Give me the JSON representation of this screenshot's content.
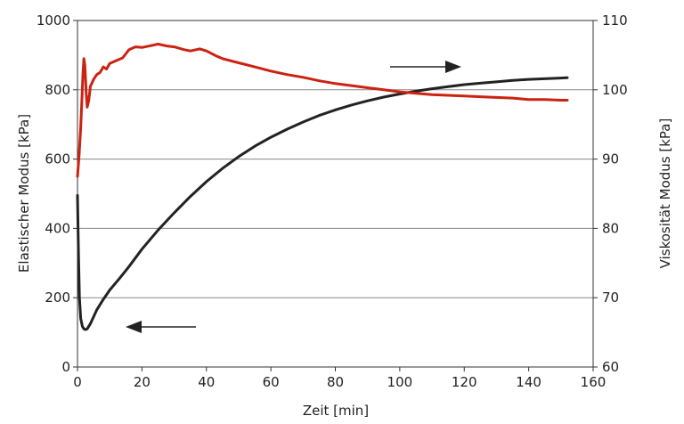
{
  "chart_data": {
    "type": "line",
    "xlabel": "Zeit [min]",
    "ylabel_left": "Elastischer Modus [kPa]",
    "ylabel_right": "Viskosität Modus [kPa]",
    "xlim": [
      0,
      160
    ],
    "ylim_left": [
      0,
      1000
    ],
    "ylim_right": [
      60,
      110
    ],
    "x_ticks": [
      0,
      20,
      40,
      60,
      80,
      100,
      120,
      140,
      160
    ],
    "y_ticks_left": [
      0,
      200,
      400,
      600,
      800,
      1000
    ],
    "y_ticks_right": [
      60,
      70,
      80,
      90,
      100,
      110
    ],
    "grid": "horizontal",
    "series": [
      {
        "axis": "left",
        "color": "#222222",
        "points": [
          [
            0,
            495
          ],
          [
            0.3,
            330
          ],
          [
            0.6,
            200
          ],
          [
            1,
            140
          ],
          [
            1.5,
            118
          ],
          [
            2,
            110
          ],
          [
            2.5,
            108
          ],
          [
            3,
            110
          ],
          [
            4,
            125
          ],
          [
            5,
            145
          ],
          [
            6,
            165
          ],
          [
            8,
            195
          ],
          [
            10,
            222
          ],
          [
            13,
            255
          ],
          [
            16,
            290
          ],
          [
            20,
            340
          ],
          [
            25,
            395
          ],
          [
            30,
            445
          ],
          [
            35,
            492
          ],
          [
            40,
            535
          ],
          [
            45,
            573
          ],
          [
            50,
            607
          ],
          [
            55,
            637
          ],
          [
            60,
            663
          ],
          [
            65,
            686
          ],
          [
            70,
            707
          ],
          [
            75,
            726
          ],
          [
            80,
            742
          ],
          [
            85,
            756
          ],
          [
            90,
            768
          ],
          [
            95,
            779
          ],
          [
            100,
            788
          ],
          [
            105,
            796
          ],
          [
            110,
            803
          ],
          [
            115,
            809
          ],
          [
            120,
            815
          ],
          [
            125,
            819
          ],
          [
            130,
            823
          ],
          [
            135,
            827
          ],
          [
            140,
            830
          ],
          [
            145,
            832
          ],
          [
            150,
            834
          ],
          [
            152,
            835
          ]
        ]
      },
      {
        "axis": "right",
        "color": "#cc2211",
        "points": [
          [
            0,
            87.5
          ],
          [
            0.5,
            90.5
          ],
          [
            1,
            94.5
          ],
          [
            1.4,
            99
          ],
          [
            1.7,
            102.5
          ],
          [
            2,
            104.5
          ],
          [
            2.3,
            103.5
          ],
          [
            2.7,
            99.5
          ],
          [
            3,
            97.5
          ],
          [
            3.5,
            98.5
          ],
          [
            4,
            100.5
          ],
          [
            5,
            101.5
          ],
          [
            6,
            102.2
          ],
          [
            7,
            102.5
          ],
          [
            8,
            103.3
          ],
          [
            9,
            103
          ],
          [
            10,
            103.8
          ],
          [
            12,
            104.2
          ],
          [
            14,
            104.6
          ],
          [
            16,
            105.8
          ],
          [
            18,
            106.2
          ],
          [
            20,
            106.1
          ],
          [
            22,
            106.3
          ],
          [
            25,
            106.6
          ],
          [
            28,
            106.3
          ],
          [
            30,
            106.2
          ],
          [
            33,
            105.8
          ],
          [
            35,
            105.6
          ],
          [
            38,
            105.9
          ],
          [
            40,
            105.6
          ],
          [
            43,
            104.9
          ],
          [
            45,
            104.5
          ],
          [
            50,
            103.9
          ],
          [
            55,
            103.3
          ],
          [
            60,
            102.7
          ],
          [
            65,
            102.2
          ],
          [
            70,
            101.8
          ],
          [
            75,
            101.3
          ],
          [
            80,
            100.9
          ],
          [
            85,
            100.6
          ],
          [
            90,
            100.3
          ],
          [
            95,
            100
          ],
          [
            100,
            99.7
          ],
          [
            105,
            99.5
          ],
          [
            110,
            99.3
          ],
          [
            115,
            99.2
          ],
          [
            120,
            99.1
          ],
          [
            125,
            99
          ],
          [
            130,
            98.9
          ],
          [
            135,
            98.8
          ],
          [
            140,
            98.6
          ],
          [
            145,
            98.6
          ],
          [
            150,
            98.5
          ],
          [
            152,
            98.5
          ]
        ]
      }
    ]
  }
}
